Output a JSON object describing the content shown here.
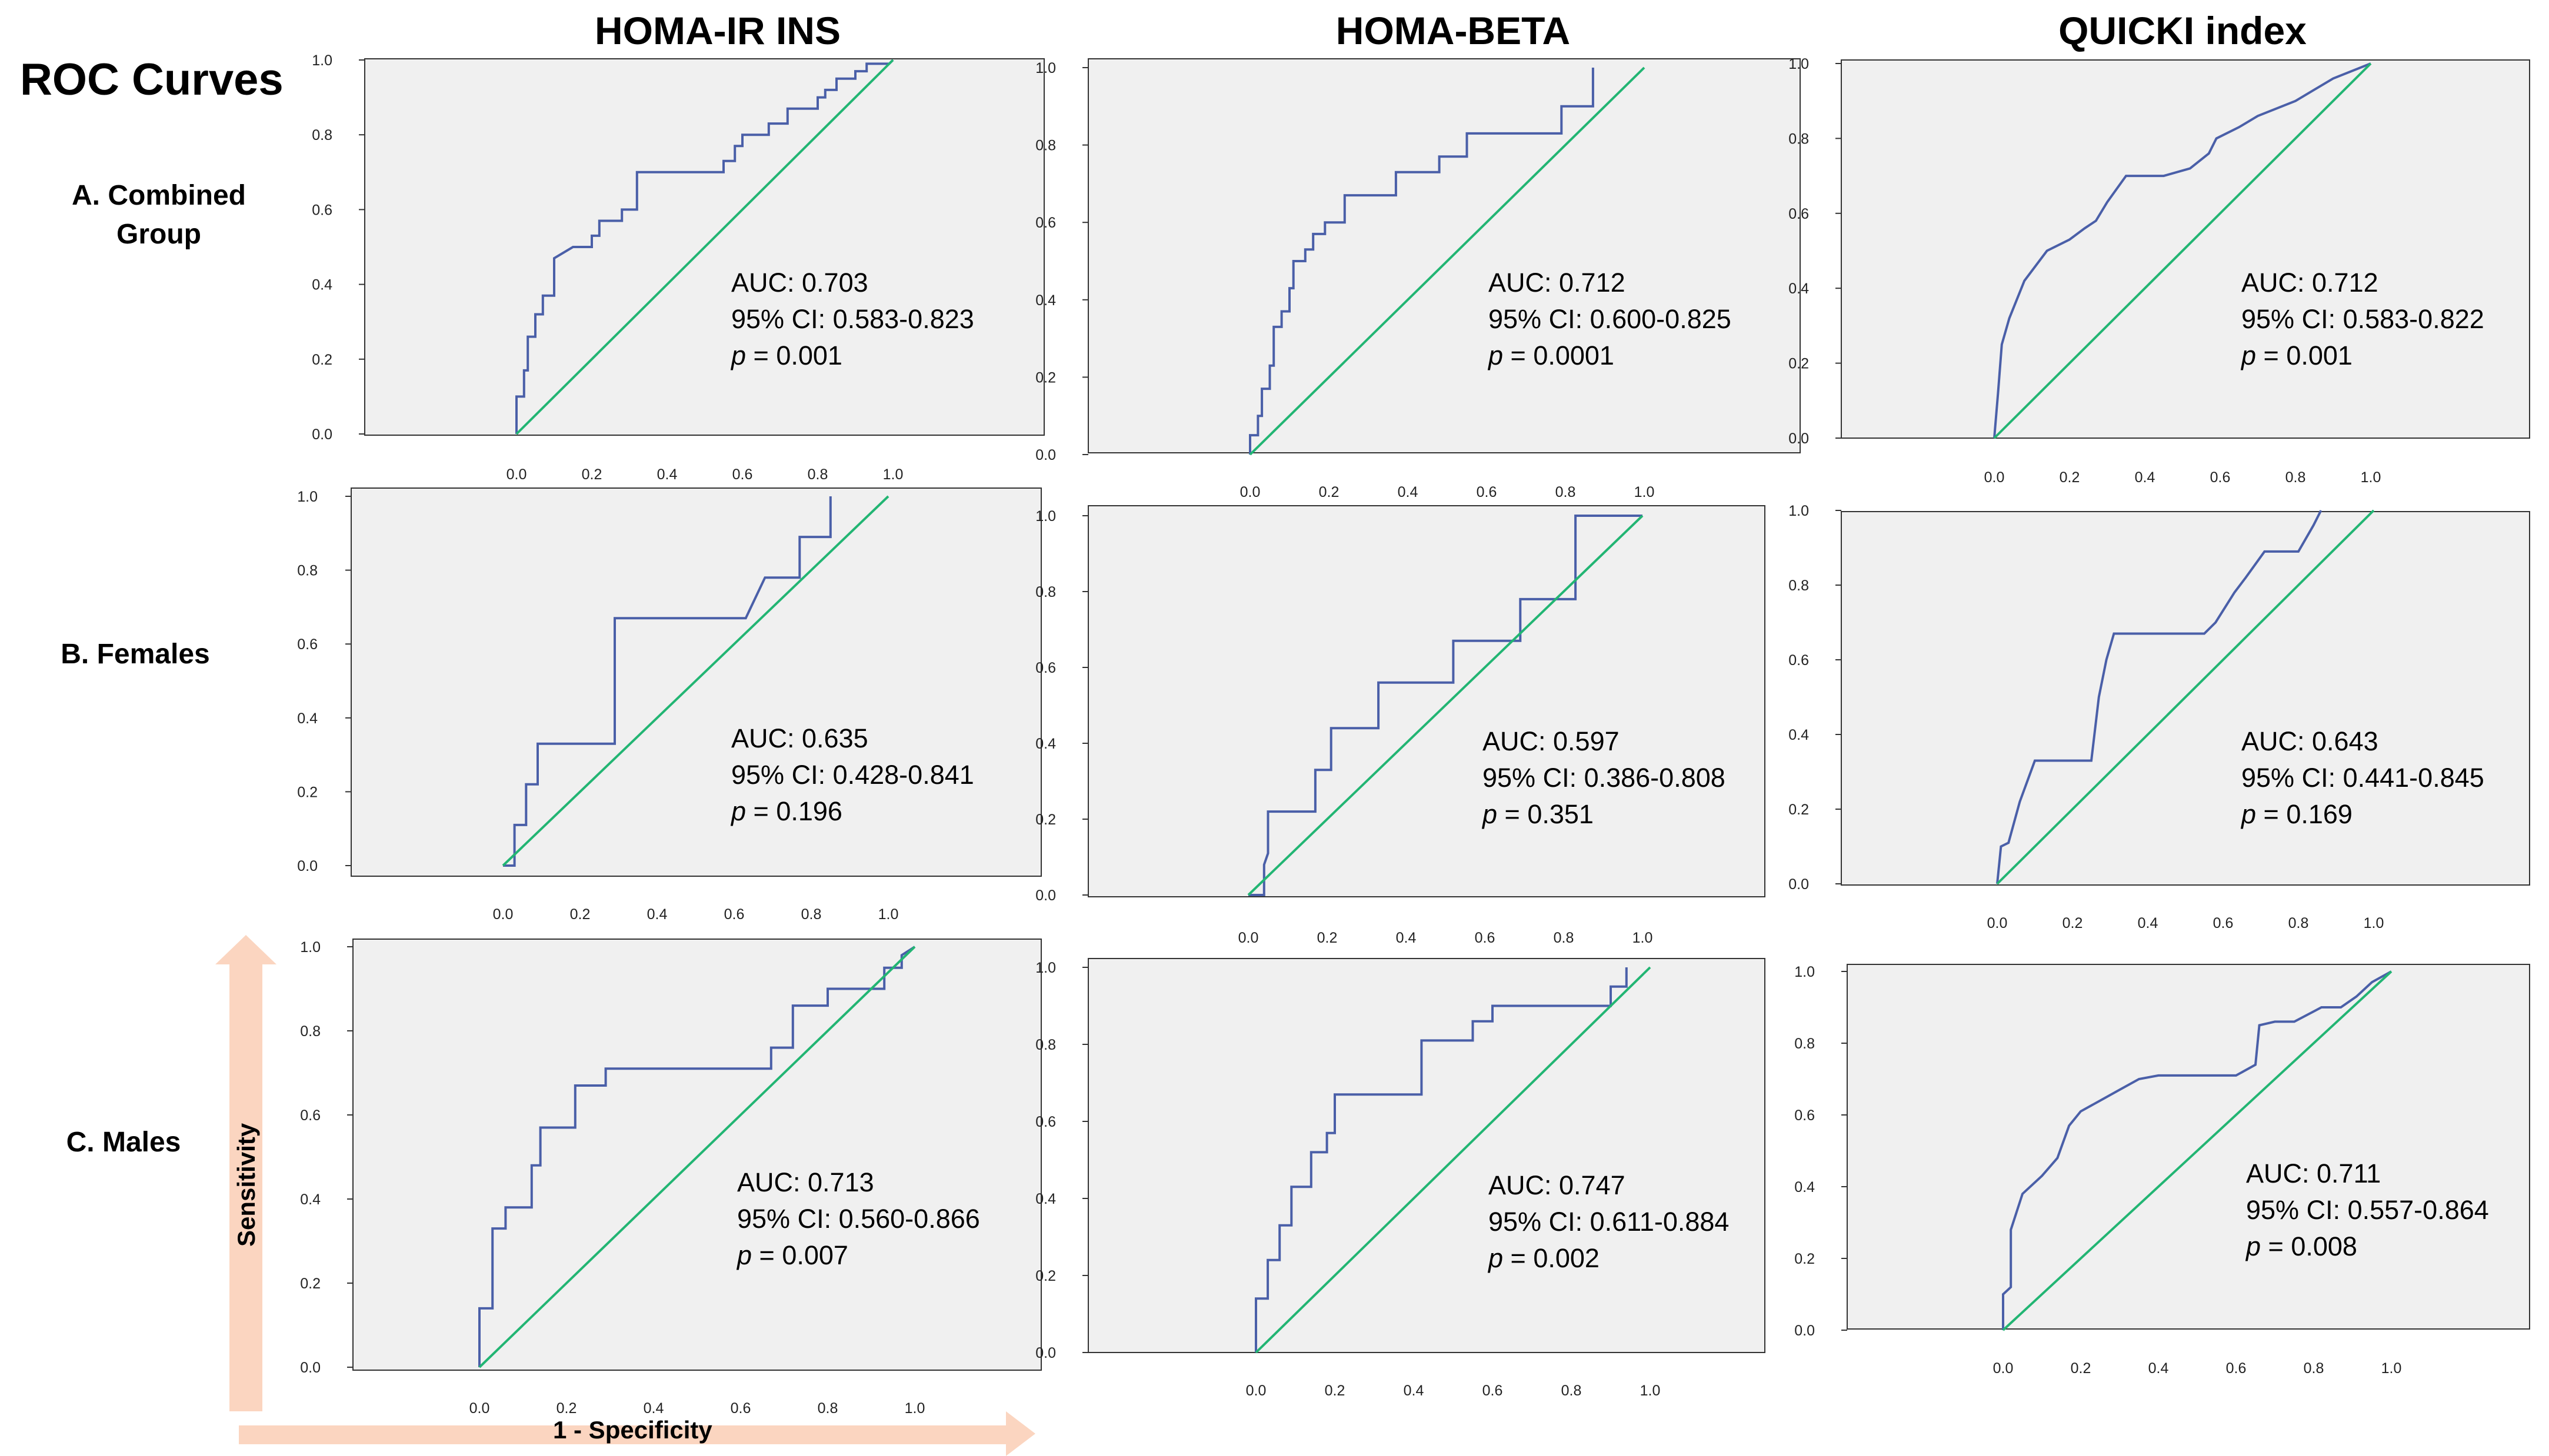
{
  "figure": {
    "title": "ROC Curves",
    "column_titles": [
      "HOMA-IR INS",
      "HOMA-BETA",
      "QUICKI index"
    ],
    "row_labels": [
      "A. Combined Group",
      "B. Females",
      "C. Males"
    ],
    "axis_titles": {
      "y": "Sensitivity",
      "x": "1 - Specificity"
    },
    "colors": {
      "roc_curve": "#4a5fa8",
      "reference_line": "#22b573",
      "plot_background": "#f0f0f0",
      "axis_arrow": "#fbd5c0"
    }
  },
  "chart_data": [
    {
      "type": "line",
      "row": "A. Combined Group",
      "column": "HOMA-IR INS",
      "xlim": [
        0,
        1
      ],
      "ylim": [
        0,
        1
      ],
      "xticks": [
        "0.0",
        "0.2",
        "0.4",
        "0.6",
        "0.8",
        "1.0"
      ],
      "yticks": [
        "0.0",
        "0.2",
        "0.4",
        "0.6",
        "0.8",
        "1.0"
      ],
      "stats": {
        "auc": "AUC: 0.703",
        "ci": "95% CI: 0.583-0.823",
        "p_label": "p",
        "p_value": " = 0.001"
      },
      "series": [
        {
          "name": "",
          "kind": "roc",
          "x": [
            0,
            0,
            0.02,
            0.02,
            0.03,
            0.03,
            0.05,
            0.05,
            0.07,
            0.07,
            0.1,
            0.1,
            0.15,
            0.2,
            0.2,
            0.22,
            0.22,
            0.28,
            0.28,
            0.32,
            0.32,
            0.5,
            0.55,
            0.55,
            0.58,
            0.58,
            0.6,
            0.6,
            0.67,
            0.67,
            0.72,
            0.72,
            0.8,
            0.8,
            0.82,
            0.82,
            0.85,
            0.85,
            0.9,
            0.9,
            0.93,
            0.93,
            0.99,
            1
          ],
          "y": [
            0,
            0.1,
            0.1,
            0.17,
            0.17,
            0.26,
            0.26,
            0.32,
            0.32,
            0.37,
            0.37,
            0.47,
            0.5,
            0.5,
            0.53,
            0.53,
            0.57,
            0.57,
            0.6,
            0.6,
            0.7,
            0.7,
            0.7,
            0.73,
            0.73,
            0.77,
            0.77,
            0.8,
            0.8,
            0.83,
            0.83,
            0.87,
            0.87,
            0.9,
            0.9,
            0.92,
            0.92,
            0.95,
            0.95,
            0.97,
            0.97,
            0.99,
            0.99,
            1
          ]
        },
        {
          "name": "",
          "kind": "reference",
          "x": [
            0,
            1
          ],
          "y": [
            0,
            1
          ]
        }
      ]
    },
    {
      "type": "line",
      "row": "A. Combined Group",
      "column": "HOMA-BETA",
      "xlim": [
        0,
        1
      ],
      "ylim": [
        0,
        1
      ],
      "xticks": [
        "0.0",
        "0.2",
        "0.4",
        "0.6",
        "0.8",
        "1.0"
      ],
      "yticks": [
        "0.0",
        "0.2",
        "0.4",
        "0.6",
        "0.8",
        "1.0"
      ],
      "stats": {
        "auc": "AUC: 0.712",
        "ci": "95% CI: 0.600-0.825",
        "p_label": "p",
        "p_value": " = 0.0001"
      },
      "series": [
        {
          "name": "",
          "kind": "roc",
          "x": [
            0,
            0,
            0.02,
            0.02,
            0.03,
            0.03,
            0.05,
            0.05,
            0.06,
            0.06,
            0.08,
            0.08,
            0.1,
            0.1,
            0.11,
            0.11,
            0.14,
            0.14,
            0.16,
            0.16,
            0.19,
            0.19,
            0.24,
            0.24,
            0.37,
            0.37,
            0.48,
            0.48,
            0.55,
            0.55,
            0.79,
            0.79,
            0.87,
            0.87
          ],
          "y": [
            0,
            0.05,
            0.05,
            0.1,
            0.1,
            0.17,
            0.17,
            0.23,
            0.23,
            0.33,
            0.33,
            0.37,
            0.37,
            0.43,
            0.43,
            0.5,
            0.5,
            0.53,
            0.53,
            0.57,
            0.57,
            0.6,
            0.6,
            0.67,
            0.67,
            0.73,
            0.73,
            0.77,
            0.77,
            0.83,
            0.83,
            0.9,
            0.9,
            1
          ]
        },
        {
          "name": "",
          "kind": "reference",
          "x": [
            0,
            1
          ],
          "y": [
            0,
            1
          ]
        }
      ]
    },
    {
      "type": "line",
      "row": "A. Combined Group",
      "column": "QUICKI index",
      "xlim": [
        0,
        1
      ],
      "ylim": [
        0,
        1
      ],
      "xticks": [
        "0.0",
        "0.2",
        "0.4",
        "0.6",
        "0.8",
        "1.0"
      ],
      "yticks": [
        "0.0",
        "0.2",
        "0.4",
        "0.6",
        "0.8",
        "1.0"
      ],
      "stats": {
        "auc": "AUC: 0.712",
        "ci": "95% CI: 0.583-0.822",
        "p_label": "p",
        "p_value": " = 0.001"
      },
      "series": [
        {
          "name": "",
          "kind": "roc",
          "x": [
            0,
            0.01,
            0.02,
            0.04,
            0.08,
            0.14,
            0.2,
            0.24,
            0.27,
            0.3,
            0.35,
            0.45,
            0.52,
            0.57,
            0.59,
            0.65,
            0.7,
            0.8,
            0.9,
            1
          ],
          "y": [
            0,
            0.12,
            0.25,
            0.32,
            0.42,
            0.5,
            0.53,
            0.56,
            0.58,
            0.63,
            0.7,
            0.7,
            0.72,
            0.76,
            0.8,
            0.83,
            0.86,
            0.9,
            0.96,
            1
          ]
        },
        {
          "name": "",
          "kind": "reference",
          "x": [
            0,
            1
          ],
          "y": [
            0,
            1
          ]
        }
      ]
    },
    {
      "type": "line",
      "row": "B. Females",
      "column": "HOMA-IR INS",
      "xlim": [
        0,
        1
      ],
      "ylim": [
        0,
        1
      ],
      "xticks": [
        "0.0",
        "0.2",
        "0.4",
        "0.6",
        "0.8",
        "1.0"
      ],
      "yticks": [
        "0.0",
        "0.2",
        "0.4",
        "0.6",
        "0.8",
        "1.0"
      ],
      "stats": {
        "auc": "AUC: 0.635",
        "ci": "95% CI: 0.428-0.841",
        "p_label": "p",
        "p_value": " = 0.196"
      },
      "series": [
        {
          "name": "",
          "kind": "roc",
          "x": [
            0,
            0.03,
            0.03,
            0.06,
            0.06,
            0.09,
            0.09,
            0.29,
            0.29,
            0.63,
            0.68,
            0.68,
            0.77,
            0.77,
            0.85,
            0.85
          ],
          "y": [
            0,
            0,
            0.11,
            0.11,
            0.22,
            0.22,
            0.33,
            0.33,
            0.67,
            0.67,
            0.78,
            0.78,
            0.78,
            0.89,
            0.89,
            1
          ]
        },
        {
          "name": "",
          "kind": "reference",
          "x": [
            0,
            1
          ],
          "y": [
            0,
            1
          ]
        }
      ]
    },
    {
      "type": "line",
      "row": "B. Females",
      "column": "HOMA-BETA",
      "xlim": [
        0,
        1
      ],
      "ylim": [
        0,
        1
      ],
      "xticks": [
        "0.0",
        "0.2",
        "0.4",
        "0.6",
        "0.8",
        "1.0"
      ],
      "yticks": [
        "0.0",
        "0.2",
        "0.4",
        "0.6",
        "0.8",
        "1.0"
      ],
      "stats": {
        "auc": "AUC: 0.597",
        "ci": "95% CI: 0.386-0.808",
        "p_label": "p",
        "p_value": " = 0.351"
      },
      "series": [
        {
          "name": "",
          "kind": "roc",
          "x": [
            0,
            0.04,
            0.04,
            0.05,
            0.05,
            0.07,
            0.07,
            0.17,
            0.17,
            0.21,
            0.21,
            0.33,
            0.33,
            0.52,
            0.52,
            0.69,
            0.69,
            0.83,
            0.83,
            0.86,
            1
          ],
          "y": [
            0,
            0,
            0.08,
            0.11,
            0.22,
            0.22,
            0.22,
            0.22,
            0.33,
            0.33,
            0.44,
            0.44,
            0.56,
            0.56,
            0.67,
            0.67,
            0.78,
            0.78,
            1,
            1,
            1
          ]
        },
        {
          "name": "",
          "kind": "reference",
          "x": [
            0,
            1
          ],
          "y": [
            0,
            1
          ]
        }
      ]
    },
    {
      "type": "line",
      "row": "B. Females",
      "column": "QUICKI index",
      "xlim": [
        0,
        1
      ],
      "ylim": [
        0,
        1
      ],
      "xticks": [
        "0.0",
        "0.2",
        "0.4",
        "0.6",
        "0.8",
        "1.0"
      ],
      "yticks": [
        "0.0",
        "0.2",
        "0.4",
        "0.6",
        "0.8",
        "1.0"
      ],
      "stats": {
        "auc": "AUC: 0.643",
        "ci": "95% CI: 0.441-0.845",
        "p_label": "p",
        "p_value": " = 0.169"
      },
      "series": [
        {
          "name": "",
          "kind": "roc",
          "x": [
            0,
            0.01,
            0.03,
            0.06,
            0.1,
            0.14,
            0.2,
            0.25,
            0.27,
            0.29,
            0.31,
            0.4,
            0.55,
            0.58,
            0.63,
            0.66,
            0.71,
            0.76,
            0.8,
            0.84,
            0.86
          ],
          "y": [
            0,
            0.1,
            0.11,
            0.22,
            0.33,
            0.33,
            0.33,
            0.33,
            0.5,
            0.6,
            0.67,
            0.67,
            0.67,
            0.7,
            0.78,
            0.82,
            0.89,
            0.89,
            0.89,
            0.96,
            1
          ]
        },
        {
          "name": "",
          "kind": "reference",
          "x": [
            0,
            1
          ],
          "y": [
            0,
            1
          ]
        }
      ]
    },
    {
      "type": "line",
      "row": "C. Males",
      "column": "HOMA-IR INS",
      "xlim": [
        0,
        1
      ],
      "ylim": [
        0,
        1
      ],
      "xticks": [
        "0.0",
        "0.2",
        "0.4",
        "0.6",
        "0.8",
        "1.0"
      ],
      "yticks": [
        "0.0",
        "0.2",
        "0.4",
        "0.6",
        "0.8",
        "1.0"
      ],
      "stats": {
        "auc": "AUC: 0.713",
        "ci": "95% CI: 0.560-0.866",
        "p_label": "p",
        "p_value": " = 0.007"
      },
      "series": [
        {
          "name": "",
          "kind": "roc",
          "x": [
            0,
            0,
            0.03,
            0.03,
            0.06,
            0.06,
            0.12,
            0.12,
            0.14,
            0.14,
            0.22,
            0.22,
            0.29,
            0.29,
            0.67,
            0.67,
            0.72,
            0.72,
            0.8,
            0.8,
            0.93,
            0.93,
            0.97,
            0.97,
            1
          ],
          "y": [
            0,
            0.14,
            0.14,
            0.33,
            0.33,
            0.38,
            0.38,
            0.48,
            0.48,
            0.57,
            0.57,
            0.67,
            0.67,
            0.71,
            0.71,
            0.76,
            0.76,
            0.86,
            0.86,
            0.9,
            0.9,
            0.95,
            0.95,
            0.98,
            1
          ]
        },
        {
          "name": "",
          "kind": "reference",
          "x": [
            0,
            1
          ],
          "y": [
            0,
            1
          ]
        }
      ]
    },
    {
      "type": "line",
      "row": "C. Males",
      "column": "HOMA-BETA",
      "xlim": [
        0,
        1
      ],
      "ylim": [
        0,
        1
      ],
      "xticks": [
        "0.0",
        "0.2",
        "0.4",
        "0.6",
        "0.8",
        "1.0"
      ],
      "yticks": [
        "0.0",
        "0.2",
        "0.4",
        "0.6",
        "0.8",
        "1.0"
      ],
      "stats": {
        "auc": "AUC: 0.747",
        "ci": "95% CI: 0.611-0.884",
        "p_label": "p",
        "p_value": " = 0.002"
      },
      "series": [
        {
          "name": "",
          "kind": "roc",
          "x": [
            0,
            0,
            0.03,
            0.03,
            0.06,
            0.06,
            0.09,
            0.09,
            0.14,
            0.14,
            0.18,
            0.18,
            0.2,
            0.2,
            0.42,
            0.42,
            0.55,
            0.55,
            0.6,
            0.6,
            0.9,
            0.9,
            0.94,
            0.94
          ],
          "y": [
            0,
            0.14,
            0.14,
            0.24,
            0.24,
            0.33,
            0.33,
            0.43,
            0.43,
            0.52,
            0.52,
            0.57,
            0.57,
            0.67,
            0.67,
            0.81,
            0.81,
            0.86,
            0.86,
            0.9,
            0.9,
            0.95,
            0.95,
            1
          ]
        },
        {
          "name": "",
          "kind": "reference",
          "x": [
            0,
            1
          ],
          "y": [
            0,
            1
          ]
        }
      ]
    },
    {
      "type": "line",
      "row": "C. Males",
      "column": "QUICKI index",
      "xlim": [
        0,
        1
      ],
      "ylim": [
        0,
        1
      ],
      "xticks": [
        "0.0",
        "0.2",
        "0.4",
        "0.6",
        "0.8",
        "1.0"
      ],
      "yticks": [
        "0.0",
        "0.2",
        "0.4",
        "0.6",
        "0.8",
        "1.0"
      ],
      "stats": {
        "auc": "AUC: 0.711",
        "ci": "95% CI: 0.557-0.864",
        "p_label": "p",
        "p_value": " = 0.008"
      },
      "series": [
        {
          "name": "",
          "kind": "roc",
          "x": [
            0,
            0,
            0.02,
            0.02,
            0.05,
            0.1,
            0.14,
            0.17,
            0.2,
            0.25,
            0.3,
            0.35,
            0.4,
            0.55,
            0.6,
            0.65,
            0.66,
            0.7,
            0.75,
            0.82,
            0.87,
            0.91,
            0.95,
            1
          ],
          "y": [
            0,
            0.1,
            0.12,
            0.28,
            0.38,
            0.43,
            0.48,
            0.57,
            0.61,
            0.64,
            0.67,
            0.7,
            0.71,
            0.71,
            0.71,
            0.74,
            0.85,
            0.86,
            0.86,
            0.9,
            0.9,
            0.93,
            0.97,
            1
          ]
        },
        {
          "name": "",
          "kind": "reference",
          "x": [
            0,
            1
          ],
          "y": [
            0,
            1
          ]
        }
      ]
    }
  ]
}
